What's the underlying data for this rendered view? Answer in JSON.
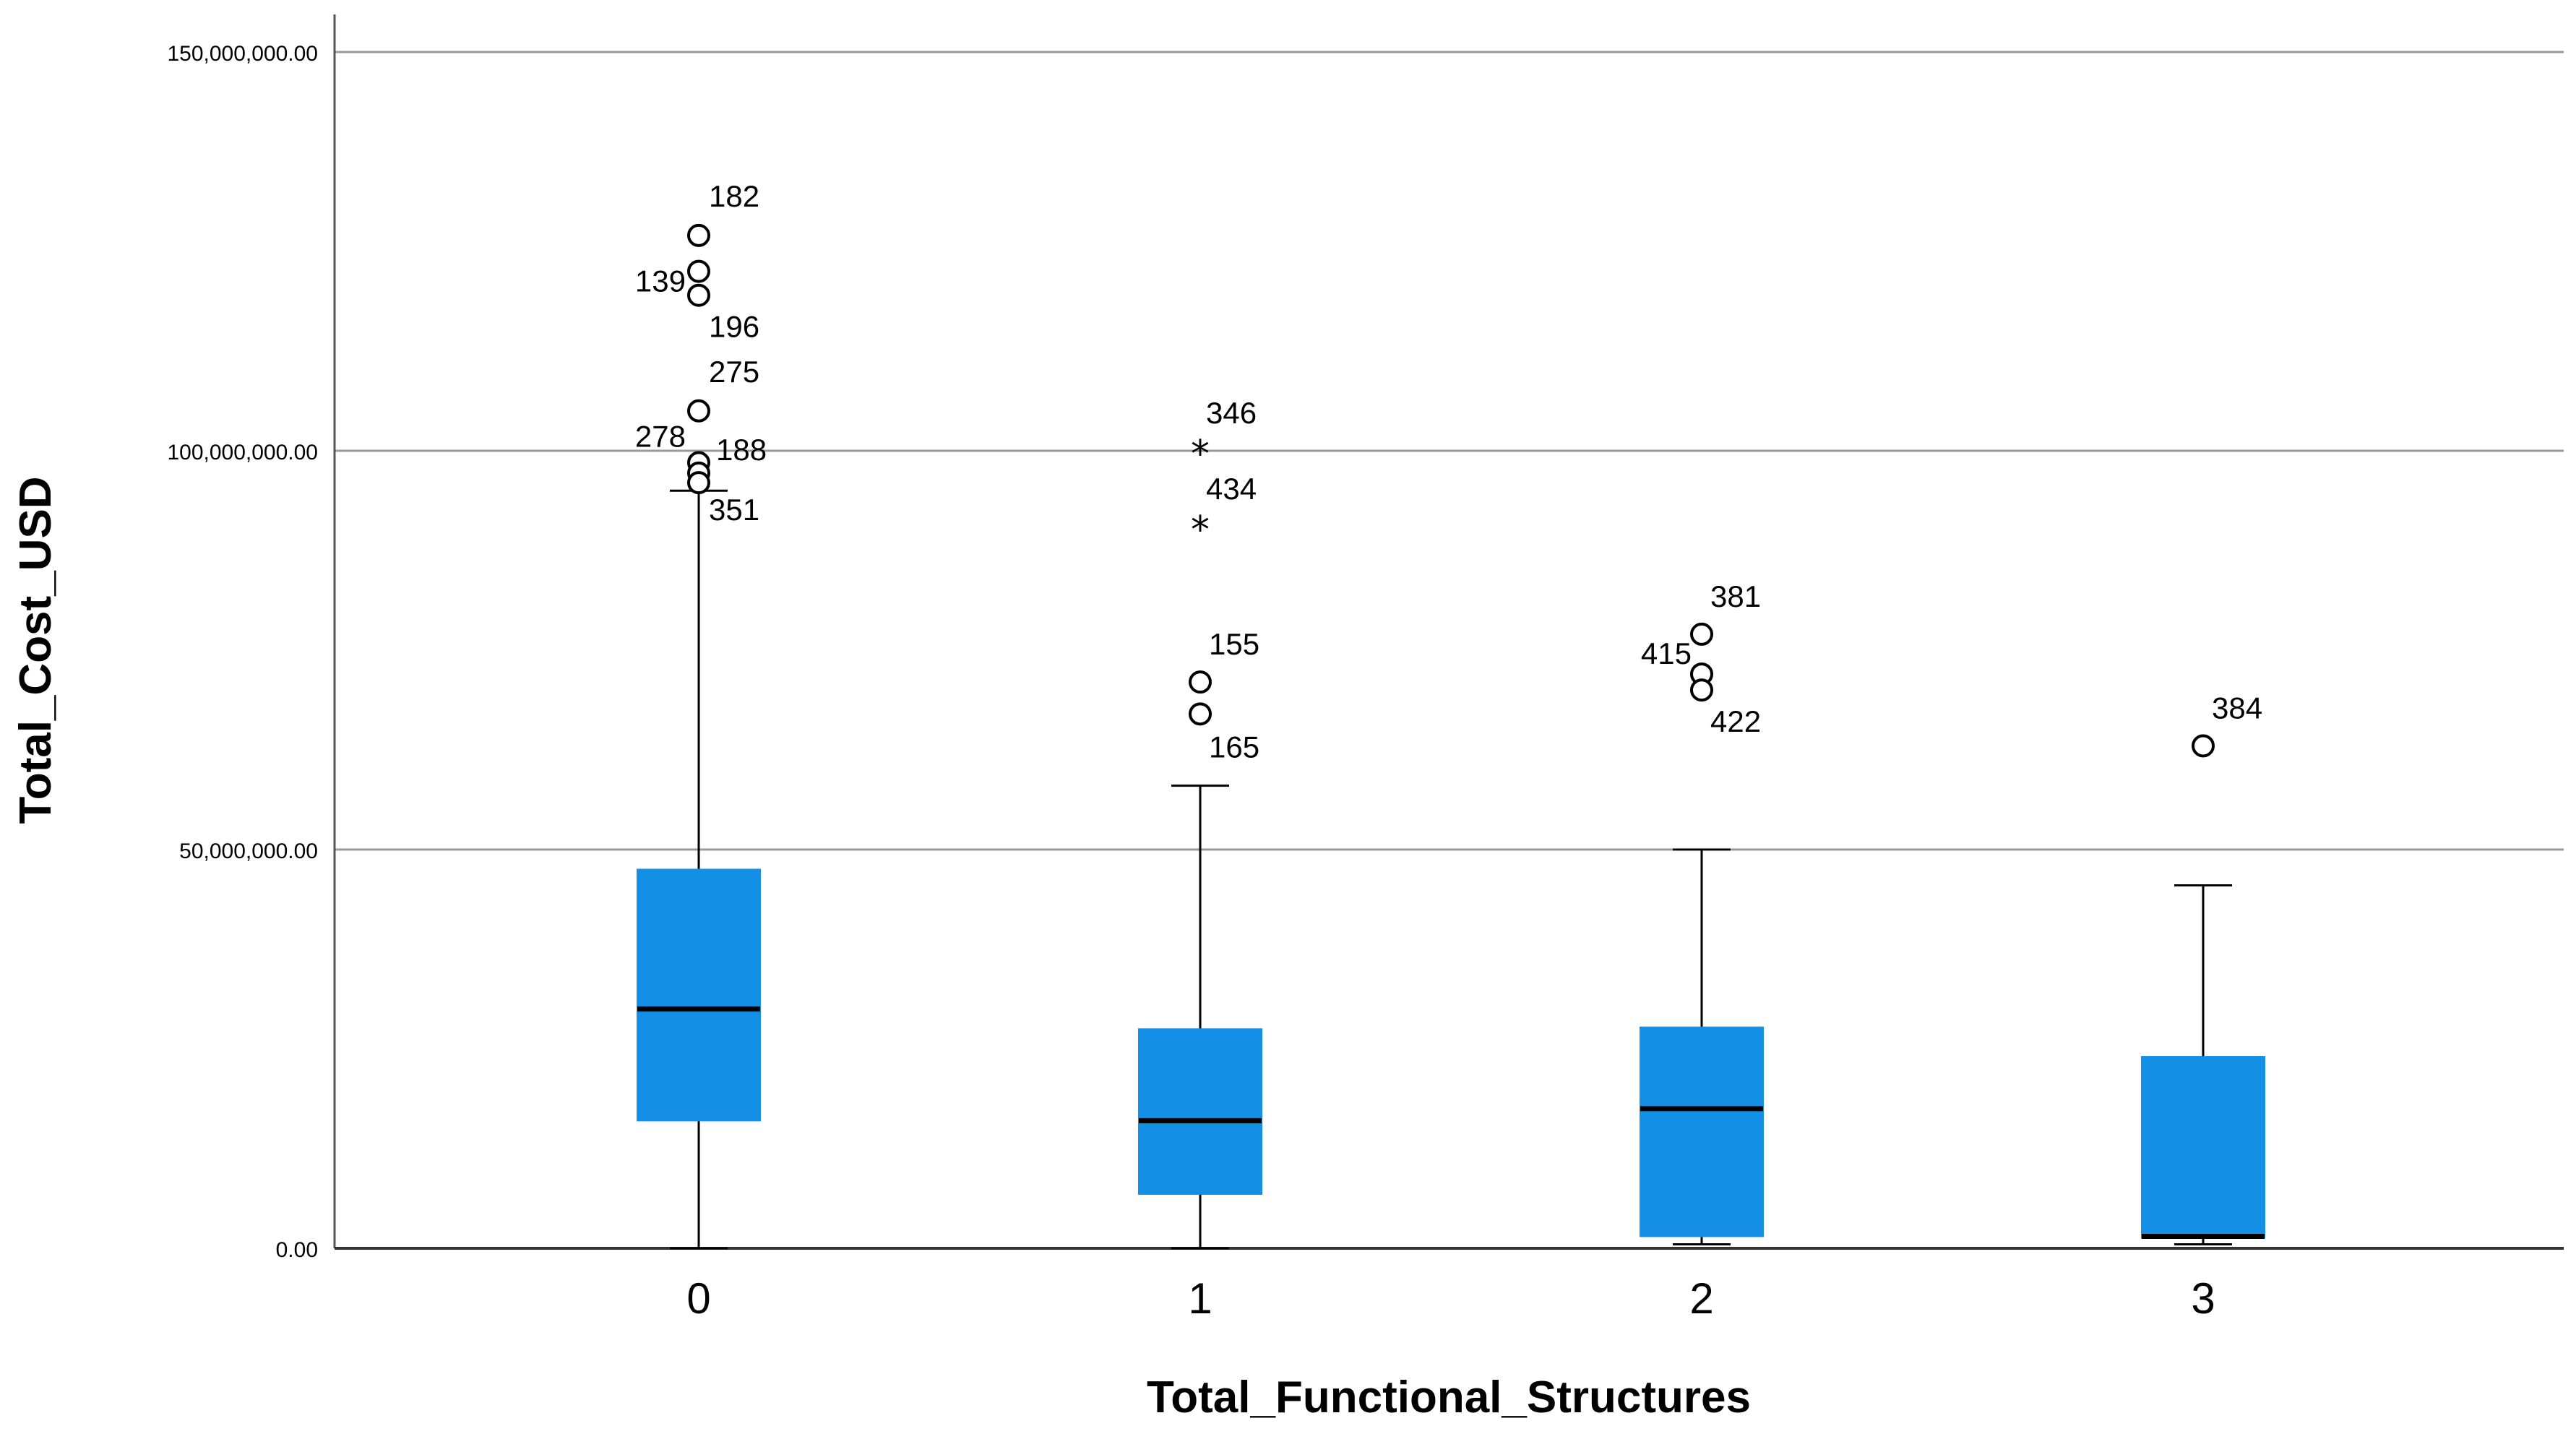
{
  "chart_data": {
    "type": "boxplot",
    "title": "",
    "xlabel": "Total_Functional_Structures",
    "ylabel": "Total_Cost_USD",
    "ylim": [
      0,
      150000000
    ],
    "yticks": [
      {
        "value": 0,
        "label": "0.00"
      },
      {
        "value": 50000000,
        "label": "50,000,000.00"
      },
      {
        "value": 100000000,
        "label": "100,000,000.00"
      },
      {
        "value": 150000000,
        "label": "150,000,000.00"
      }
    ],
    "grid": "horizontal",
    "box_color": "#1390E6",
    "categories": [
      "0",
      "1",
      "2",
      "3"
    ],
    "boxes": [
      {
        "category": "0",
        "whisker_low": 0,
        "q1": 16000000,
        "median": 30000000,
        "q3": 47500000,
        "whisker_high": 95000000,
        "outliers": [
          {
            "value": 127000000,
            "marker": "circle",
            "label": "182"
          },
          {
            "value": 122500000,
            "marker": "circle",
            "label": "139"
          },
          {
            "value": 119500000,
            "marker": "circle",
            "label": "196"
          },
          {
            "value": 105000000,
            "marker": "circle",
            "label": "275"
          },
          {
            "value": 98500000,
            "marker": "circle",
            "label": "278"
          },
          {
            "value": 97200000,
            "marker": "circle",
            "label": "188"
          },
          {
            "value": 96000000,
            "marker": "circle",
            "label": "351"
          }
        ]
      },
      {
        "category": "1",
        "whisker_low": 0,
        "q1": 6800000,
        "median": 16000000,
        "q3": 27500000,
        "whisker_high": 58000000,
        "outliers": [
          {
            "value": 100000000,
            "marker": "star",
            "label": "346"
          },
          {
            "value": 90500000,
            "marker": "star",
            "label": "434"
          },
          {
            "value": 71000000,
            "marker": "circle",
            "label": "155"
          },
          {
            "value": 67000000,
            "marker": "circle",
            "label": "165"
          }
        ]
      },
      {
        "category": "2",
        "whisker_low": 500000,
        "q1": 1500000,
        "median": 17500000,
        "q3": 27700000,
        "whisker_high": 50000000,
        "outliers": [
          {
            "value": 77000000,
            "marker": "circle",
            "label": "381"
          },
          {
            "value": 72000000,
            "marker": "circle",
            "label": "415"
          },
          {
            "value": 70000000,
            "marker": "circle",
            "label": "422"
          }
        ]
      },
      {
        "category": "3",
        "whisker_low": 500000,
        "q1": 1300000,
        "median": 1500000,
        "q3": 24000000,
        "whisker_high": 45500000,
        "outliers": [
          {
            "value": 63000000,
            "marker": "circle",
            "label": "384"
          }
        ]
      }
    ]
  }
}
